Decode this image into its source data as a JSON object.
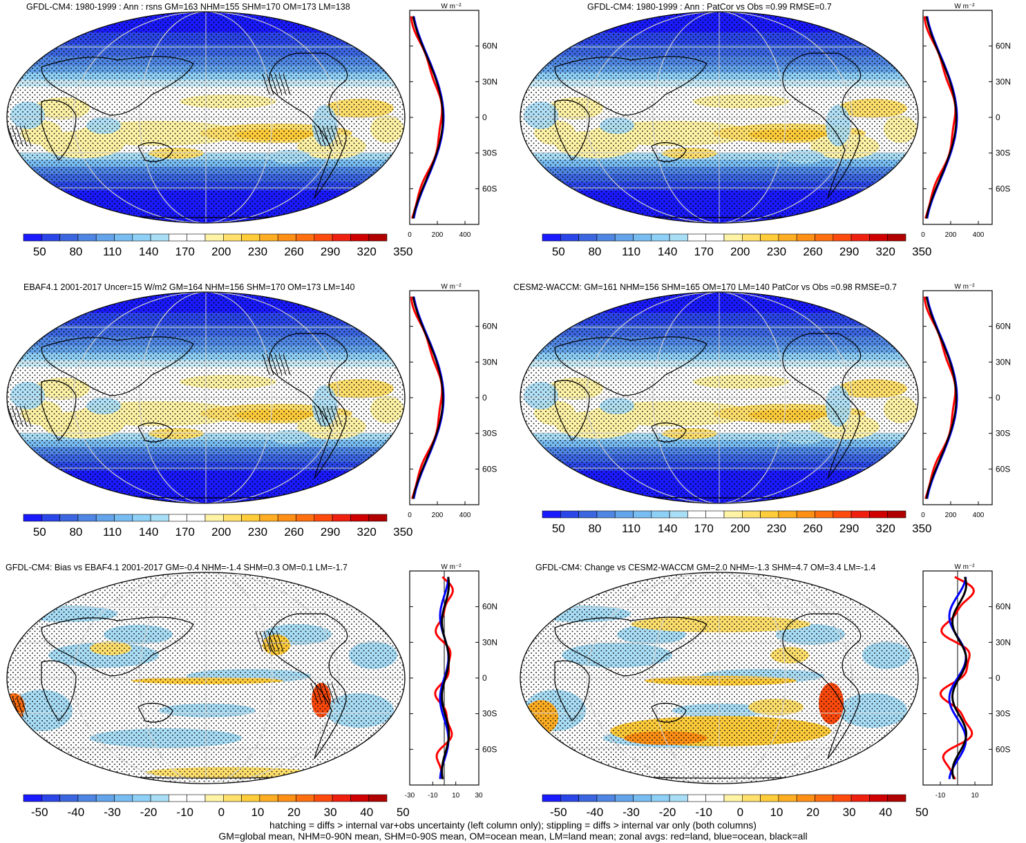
{
  "panels": [
    {
      "id": "p1",
      "title": "GFDL-CM4: 1980-1999 : Ann : rsns GM=163 NHM=155 SHM=170 OM=173 LM=138",
      "colorbar_labels": [
        "50",
        "80",
        "110",
        "140",
        "170",
        "200",
        "230",
        "260",
        "290",
        "320",
        "350"
      ],
      "zonal_x_ticks": [
        "0",
        "200",
        "400"
      ],
      "zonal_y_ticks": [
        "60N",
        "30N",
        "0",
        "30S",
        "60S"
      ],
      "zonal_unit": "W m⁻²",
      "field": "abs",
      "hatching": true
    },
    {
      "id": "p2",
      "title": "GFDL-CM4: 1980-1999 : Ann : PatCor vs Obs =0.99 RMSE=0.7",
      "colorbar_labels": [
        "50",
        "80",
        "110",
        "140",
        "170",
        "200",
        "230",
        "260",
        "290",
        "320",
        "350"
      ],
      "zonal_x_ticks": [
        "0",
        "200",
        "400"
      ],
      "zonal_y_ticks": [
        "60N",
        "30N",
        "0",
        "30S",
        "60S"
      ],
      "zonal_unit": "W m⁻²",
      "field": "abs",
      "hatching": false
    },
    {
      "id": "p3",
      "title": "EBAF4.1 2001-2017 Uncer=15 W/m2 GM=164 NHM=156 SHM=170 OM=173 LM=140",
      "colorbar_labels": [
        "50",
        "80",
        "110",
        "140",
        "170",
        "200",
        "230",
        "260",
        "290",
        "320",
        "350"
      ],
      "zonal_x_ticks": [
        "0",
        "200",
        "400"
      ],
      "zonal_y_ticks": [
        "60N",
        "30N",
        "0",
        "30S",
        "60S"
      ],
      "zonal_unit": "W m⁻²",
      "field": "abs",
      "hatching": true
    },
    {
      "id": "p4",
      "title": "CESM2-WACCM: GM=161 NHM=156 SHM=165 OM=170 LM=140 PatCor vs Obs =0.98 RMSE=0.7",
      "colorbar_labels": [
        "50",
        "80",
        "110",
        "140",
        "170",
        "200",
        "230",
        "260",
        "290",
        "320",
        "350"
      ],
      "zonal_x_ticks": [
        "0",
        "200",
        "400"
      ],
      "zonal_y_ticks": [
        "60N",
        "30N",
        "0",
        "30S",
        "60S"
      ],
      "zonal_unit": "W m⁻²",
      "field": "abs",
      "hatching": false
    },
    {
      "id": "p5",
      "title": "GFDL-CM4: Bias vs EBAF4.1 2001-2017 GM=-0.4 NHM=-1.4 SHM=0.3 OM=0.1 LM=-1.7",
      "colorbar_labels": [
        "-50",
        "-40",
        "-30",
        "-20",
        "-10",
        "0",
        "10",
        "20",
        "30",
        "40",
        "50"
      ],
      "zonal_x_ticks": [
        "-30",
        "-10",
        "10",
        "30"
      ],
      "zonal_y_ticks": [
        "60N",
        "30N",
        "0",
        "30S",
        "60S"
      ],
      "zonal_unit": "W m⁻²",
      "field": "diff",
      "hatching": true
    },
    {
      "id": "p6",
      "title": "GFDL-CM4: Change vs CESM2-WACCM GM=2.0 NHM=-1.3 SHM=4.7 OM=3.4 LM=-1.4",
      "colorbar_labels": [
        "-50",
        "-40",
        "-30",
        "-20",
        "-10",
        "0",
        "10",
        "20",
        "30",
        "40",
        "50"
      ],
      "zonal_x_ticks": [
        "-10",
        "10"
      ],
      "zonal_y_ticks": [
        "60N",
        "30N",
        "0",
        "30S",
        "60S"
      ],
      "zonal_unit": "W m⁻²",
      "field": "diff",
      "hatching": false
    }
  ],
  "colorbar_colors": [
    "#1a1aff",
    "#2b46e8",
    "#3b66df",
    "#4f86e3",
    "#63a4ea",
    "#78bdf2",
    "#8fd0f7",
    "#a9def7",
    "#ffffff",
    "#ffffff",
    "#fff3a6",
    "#ffe06c",
    "#ffcc3a",
    "#ffae23",
    "#ff9016",
    "#ff6f10",
    "#ff4a0d",
    "#f02010",
    "#d00000",
    "#b00000"
  ],
  "footer": {
    "line1": "hatching = diffs > internal var+obs uncertainty (left column only); stippling = diffs > internal var only (both columns)",
    "line2": "GM=global mean, NHM=0-90N mean, SHM=0-90S mean, OM=ocean mean, LM=land mean; zonal avgs: red=land, blue=ocean, black=all"
  },
  "zonal_line_colors": {
    "land": "#ff0000",
    "ocean": "#0000ff",
    "all": "#000000"
  }
}
